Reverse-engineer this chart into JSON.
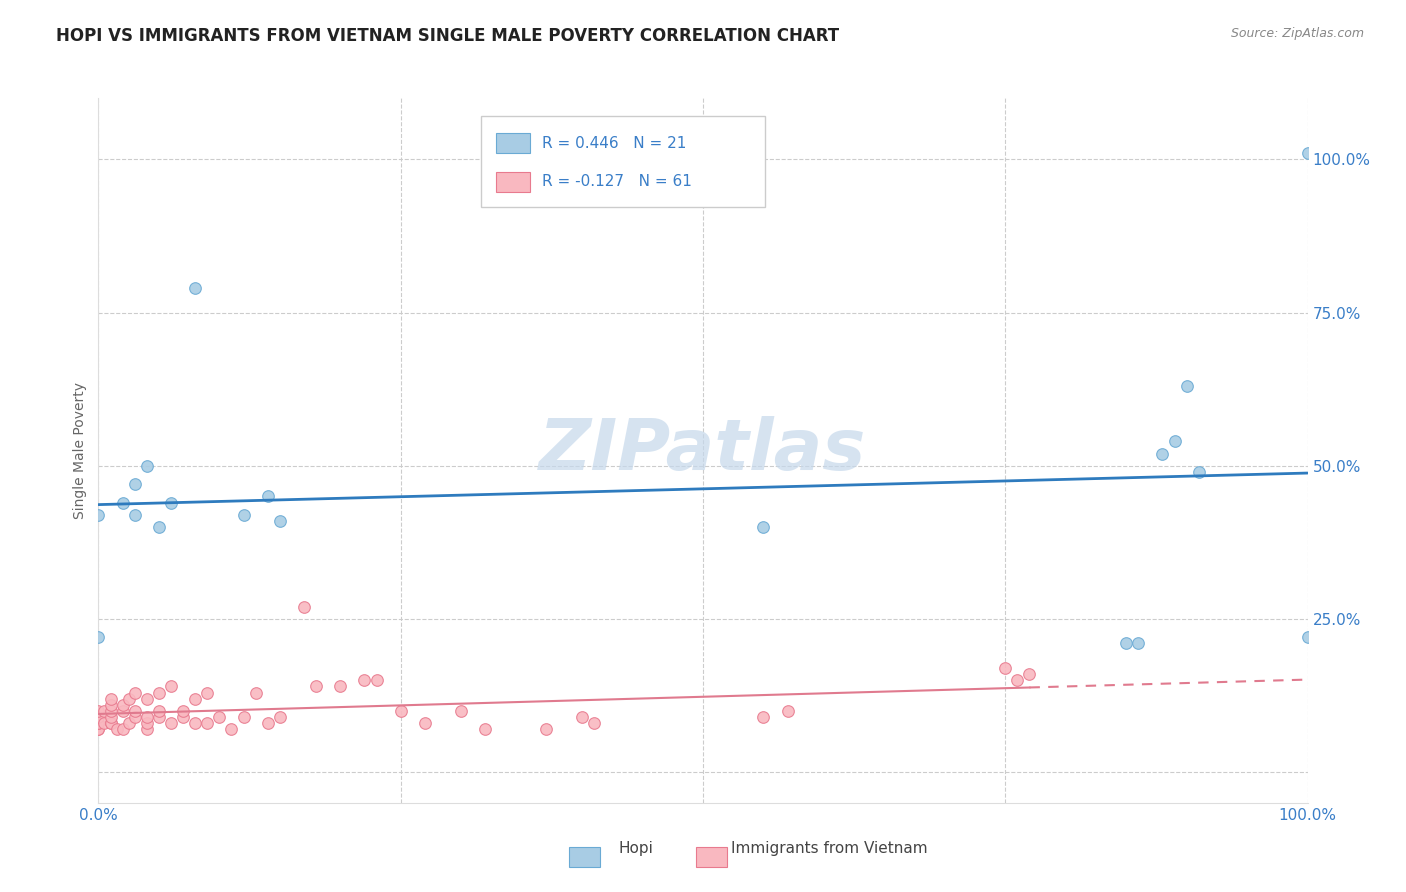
{
  "title": "HOPI VS IMMIGRANTS FROM VIETNAM SINGLE MALE POVERTY CORRELATION CHART",
  "source": "Source: ZipAtlas.com",
  "ylabel": "Single Male Poverty",
  "xlim": [
    0.0,
    1.0
  ],
  "ylim": [
    -0.05,
    1.1
  ],
  "hopi_color": "#a8cce4",
  "hopi_edge_color": "#6aaad4",
  "vietnam_color": "#f9b8c0",
  "vietnam_edge_color": "#e87a8e",
  "hopi_R": 0.446,
  "hopi_N": 21,
  "vietnam_R": -0.127,
  "vietnam_N": 61,
  "hopi_line_color": "#2e7bbe",
  "vietnam_line_color": "#e07a8e",
  "legend_text_color": "#3a6fbd",
  "legend_label_color": "#444444",
  "watermark": "ZIPatlas",
  "watermark_color": "#c5d8eb",
  "hopi_x": [
    0.0,
    0.02,
    0.03,
    0.03,
    0.04,
    0.05,
    0.06,
    0.08,
    0.12,
    0.14,
    0.15,
    0.55,
    0.85,
    0.86,
    0.88,
    0.89,
    0.9,
    0.91,
    1.0,
    1.0,
    0.0
  ],
  "hopi_y": [
    0.42,
    0.44,
    0.47,
    0.42,
    0.5,
    0.4,
    0.44,
    0.79,
    0.42,
    0.45,
    0.41,
    0.4,
    0.21,
    0.21,
    0.52,
    0.54,
    0.63,
    0.49,
    0.22,
    1.01,
    0.22
  ],
  "vietnam_x": [
    0.0,
    0.0,
    0.0,
    0.0,
    0.0,
    0.0,
    0.005,
    0.005,
    0.01,
    0.01,
    0.01,
    0.01,
    0.01,
    0.01,
    0.015,
    0.02,
    0.02,
    0.02,
    0.025,
    0.025,
    0.03,
    0.03,
    0.03,
    0.04,
    0.04,
    0.04,
    0.04,
    0.05,
    0.05,
    0.05,
    0.06,
    0.06,
    0.07,
    0.07,
    0.08,
    0.08,
    0.09,
    0.09,
    0.1,
    0.11,
    0.12,
    0.13,
    0.14,
    0.15,
    0.17,
    0.18,
    0.2,
    0.22,
    0.23,
    0.25,
    0.27,
    0.3,
    0.32,
    0.37,
    0.4,
    0.41,
    0.55,
    0.57,
    0.75,
    0.76,
    0.77
  ],
  "vietnam_y": [
    0.07,
    0.07,
    0.08,
    0.08,
    0.09,
    0.1,
    0.08,
    0.1,
    0.08,
    0.08,
    0.09,
    0.1,
    0.11,
    0.12,
    0.07,
    0.07,
    0.1,
    0.11,
    0.08,
    0.12,
    0.09,
    0.1,
    0.13,
    0.07,
    0.08,
    0.09,
    0.12,
    0.09,
    0.1,
    0.13,
    0.08,
    0.14,
    0.09,
    0.1,
    0.08,
    0.12,
    0.08,
    0.13,
    0.09,
    0.07,
    0.09,
    0.13,
    0.08,
    0.09,
    0.27,
    0.14,
    0.14,
    0.15,
    0.15,
    0.1,
    0.08,
    0.1,
    0.07,
    0.07,
    0.09,
    0.08,
    0.09,
    0.1,
    0.17,
    0.15,
    0.16
  ],
  "background_color": "#ffffff",
  "grid_color": "#cccccc",
  "marker_size": 70,
  "title_fontsize": 12,
  "source_fontsize": 9,
  "tick_label_color": "#3a7ec8",
  "tick_fontsize": 11
}
